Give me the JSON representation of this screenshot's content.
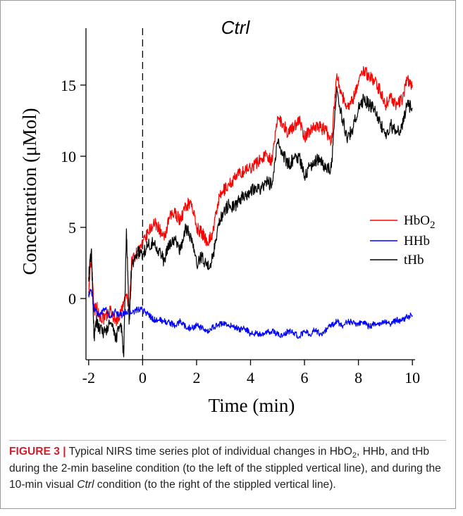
{
  "figure": {
    "panel_title": "Ctrl"
  },
  "chart_data": {
    "type": "line",
    "title": "Ctrl",
    "xlabel": "Time (min)",
    "ylabel": "Concentration (μMol)",
    "xlim": [
      -2.1,
      10.1
    ],
    "ylim": [
      -4.3,
      19
    ],
    "xticks": [
      -2,
      0,
      2,
      4,
      6,
      8,
      10
    ],
    "yticks": [
      0,
      5,
      10,
      15
    ],
    "baseline_marker_x": 0,
    "legend_position": "right",
    "series": [
      {
        "name": "HbO2",
        "color": "#ff0000",
        "x": [
          -2.0,
          -1.9,
          -1.8,
          -1.7,
          -1.6,
          -1.4,
          -1.2,
          -1.0,
          -0.8,
          -0.6,
          -0.5,
          -0.4,
          -0.2,
          0.0,
          0.2,
          0.4,
          0.6,
          0.8,
          1.0,
          1.2,
          1.4,
          1.6,
          1.8,
          2.0,
          2.2,
          2.4,
          2.6,
          2.8,
          3.0,
          3.2,
          3.4,
          3.6,
          3.8,
          4.0,
          4.2,
          4.4,
          4.6,
          4.8,
          5.0,
          5.2,
          5.4,
          5.6,
          5.8,
          6.0,
          6.2,
          6.4,
          6.6,
          6.8,
          7.0,
          7.2,
          7.4,
          7.6,
          7.8,
          8.0,
          8.2,
          8.4,
          8.6,
          8.8,
          9.0,
          9.2,
          9.4,
          9.6,
          9.8,
          10.0
        ],
        "y": [
          0.5,
          3.0,
          -0.8,
          -0.6,
          -1.2,
          -1.5,
          -0.8,
          -1.6,
          -1.0,
          0.3,
          -0.8,
          2.8,
          3.2,
          3.8,
          4.6,
          5.3,
          5.0,
          4.1,
          5.7,
          6.0,
          5.5,
          6.5,
          6.8,
          5.0,
          4.6,
          4.0,
          4.6,
          6.8,
          7.6,
          8.0,
          8.4,
          8.8,
          9.0,
          9.2,
          9.5,
          9.8,
          10.2,
          9.6,
          12.8,
          12.3,
          11.6,
          12.1,
          12.6,
          11.3,
          11.8,
          12.2,
          12.0,
          11.8,
          11.0,
          15.8,
          14.2,
          13.5,
          14.0,
          15.3,
          16.1,
          15.6,
          15.3,
          14.6,
          13.6,
          14.2,
          13.6,
          13.9,
          15.3,
          15.0
        ]
      },
      {
        "name": "HHb",
        "color": "#0000ff",
        "x": [
          -2.0,
          -1.9,
          -1.8,
          -1.6,
          -1.4,
          -1.2,
          -1.0,
          -0.8,
          -0.6,
          -0.4,
          -0.2,
          0.0,
          0.2,
          0.4,
          0.6,
          0.8,
          1.0,
          1.2,
          1.4,
          1.6,
          1.8,
          2.0,
          2.2,
          2.4,
          2.6,
          2.8,
          3.0,
          3.2,
          3.4,
          3.6,
          3.8,
          4.0,
          4.2,
          4.4,
          4.6,
          4.8,
          5.0,
          5.2,
          5.4,
          5.6,
          5.8,
          6.0,
          6.2,
          6.4,
          6.6,
          6.8,
          7.0,
          7.2,
          7.4,
          7.6,
          7.8,
          8.0,
          8.2,
          8.4,
          8.6,
          8.8,
          9.0,
          9.2,
          9.4,
          9.6,
          9.8,
          10.0
        ],
        "y": [
          0.3,
          0.6,
          -0.7,
          -1.2,
          -0.7,
          -1.3,
          -0.9,
          -1.2,
          -0.9,
          -1.0,
          -0.8,
          -0.8,
          -1.1,
          -1.5,
          -1.5,
          -1.6,
          -1.7,
          -1.9,
          -1.6,
          -2.0,
          -2.1,
          -1.9,
          -2.1,
          -2.4,
          -2.0,
          -1.9,
          -1.7,
          -1.9,
          -2.0,
          -2.2,
          -2.1,
          -2.5,
          -2.4,
          -2.6,
          -2.4,
          -2.3,
          -2.5,
          -2.6,
          -2.3,
          -2.4,
          -2.7,
          -2.3,
          -2.5,
          -2.2,
          -2.5,
          -2.2,
          -1.9,
          -1.6,
          -1.9,
          -1.6,
          -1.7,
          -1.8,
          -1.6,
          -2.0,
          -1.8,
          -1.7,
          -1.6,
          -1.8,
          -1.5,
          -1.6,
          -1.3,
          -1.2
        ]
      },
      {
        "name": "tHb",
        "color": "#000000",
        "x": [
          -2.0,
          -1.9,
          -1.8,
          -1.7,
          -1.6,
          -1.4,
          -1.2,
          -1.0,
          -0.8,
          -0.7,
          -0.6,
          -0.5,
          -0.4,
          -0.2,
          0.0,
          0.2,
          0.4,
          0.6,
          0.8,
          1.0,
          1.2,
          1.4,
          1.6,
          1.8,
          2.0,
          2.2,
          2.4,
          2.6,
          2.8,
          3.0,
          3.2,
          3.4,
          3.6,
          3.8,
          4.0,
          4.2,
          4.4,
          4.6,
          4.8,
          5.0,
          5.2,
          5.4,
          5.6,
          5.8,
          6.0,
          6.2,
          6.4,
          6.6,
          6.8,
          7.0,
          7.2,
          7.4,
          7.6,
          7.8,
          8.0,
          8.2,
          8.4,
          8.6,
          8.8,
          9.0,
          9.2,
          9.4,
          9.6,
          9.8,
          10.0
        ],
        "y": [
          1.5,
          3.5,
          -2.8,
          -1.5,
          -2.2,
          -2.4,
          -1.7,
          -2.8,
          -1.8,
          -4.1,
          4.9,
          -1.8,
          2.3,
          3.3,
          3.1,
          3.8,
          3.9,
          3.4,
          2.6,
          3.9,
          4.1,
          3.4,
          5.0,
          4.3,
          2.4,
          3.0,
          2.2,
          2.8,
          5.2,
          6.1,
          6.6,
          6.4,
          7.0,
          7.3,
          7.5,
          7.9,
          7.7,
          8.2,
          8.0,
          11.0,
          10.2,
          9.4,
          9.8,
          10.0,
          8.6,
          9.3,
          9.7,
          9.8,
          9.1,
          9.2,
          14.9,
          12.6,
          11.3,
          12.0,
          13.4,
          14.0,
          13.6,
          13.3,
          12.4,
          11.4,
          12.2,
          11.6,
          12.0,
          13.6,
          13.4
        ]
      }
    ]
  },
  "caption": {
    "label": "FIGURE 3 |",
    "text_1": " Typical NIRS time series plot of individual changes in HbO",
    "sub_1": "2",
    "text_2": ", HHb, and tHb during the 2-min baseline condition (to the left of the stippled vertical line), and during the 10-min visual ",
    "italic": "Ctrl",
    "text_3": " condition (to the right of the stippled vertical line)."
  }
}
